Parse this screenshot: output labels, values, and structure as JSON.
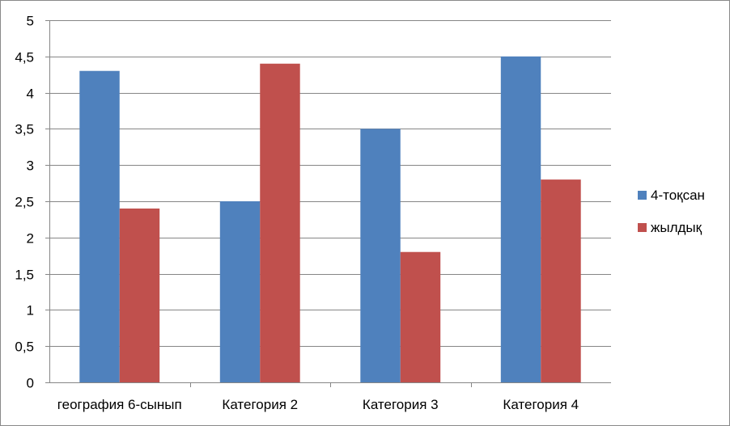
{
  "chart_data": {
    "type": "bar",
    "categories": [
      "география 6-сынып",
      "Категория 2",
      "Категория 3",
      "Категория 4"
    ],
    "series": [
      {
        "name": "4-тоқсан",
        "values": [
          4.3,
          2.5,
          3.5,
          4.5
        ],
        "color": "#4F81BD"
      },
      {
        "name": "жылдық",
        "values": [
          2.4,
          4.4,
          1.8,
          2.8
        ],
        "color": "#C0504D"
      }
    ],
    "yticks": [
      "0",
      "0,5",
      "1",
      "1,5",
      "2",
      "2,5",
      "3",
      "3,5",
      "4",
      "4,5",
      "5"
    ],
    "ylim": [
      0,
      5
    ],
    "grid": true,
    "legend_position": "right",
    "title": "",
    "xlabel": "",
    "ylabel": ""
  }
}
